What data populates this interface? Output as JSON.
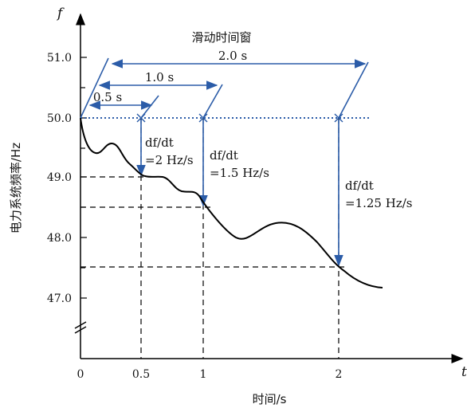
{
  "title": "滑动时间窗",
  "axes": {
    "y_symbol": "f",
    "x_symbol": "t",
    "y_label": "电力系统频率/Hz",
    "x_label": "时间/s",
    "y_ticks": [
      "51.0",
      "50.0",
      "49.0",
      "48.0",
      "47.0"
    ],
    "x_ticks": [
      "0",
      "0.5",
      "1",
      "2"
    ]
  },
  "windows": [
    {
      "label": "0.5 s",
      "duration_s": 0.5
    },
    {
      "label": "1.0 s",
      "duration_s": 1.0
    },
    {
      "label": "2.0 s",
      "duration_s": 2.0
    }
  ],
  "rates": [
    {
      "line1": "df/dt",
      "line2": "=2 Hz/s",
      "t": 0.5,
      "f_end": 49.0
    },
    {
      "line1": "df/dt",
      "line2": "=1.5 Hz/s",
      "t": 1.0,
      "f_end": 48.5
    },
    {
      "line1": "df/dt",
      "line2": "=1.25 Hz/s",
      "t": 2.0,
      "f_end": 47.5
    }
  ],
  "colors": {
    "arrow": "#2b5ca8",
    "curve": "#000000",
    "guide": "#000000"
  }
}
